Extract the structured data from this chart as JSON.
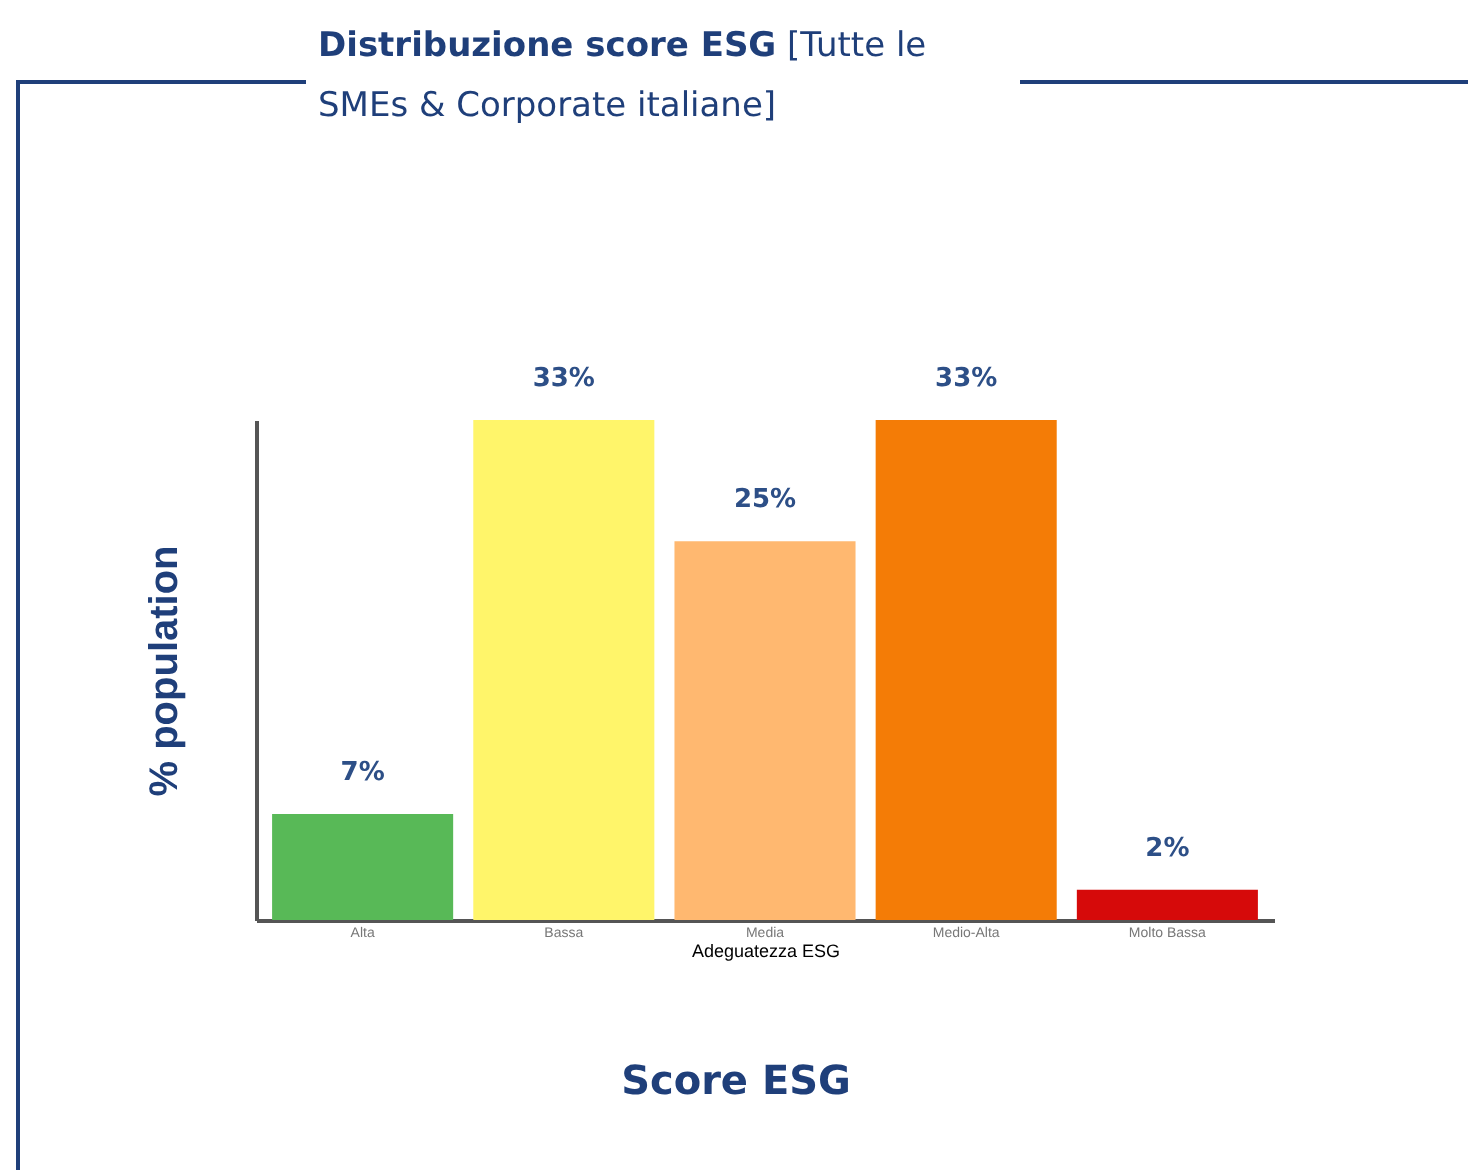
{
  "chart_data": {
    "type": "bar",
    "title": "Distribuzione score ESG",
    "subtitle": "[Tutte le SMEs & Corporate italiane]",
    "xlabel": "Adeguatezza ESG",
    "ylabel": "% population",
    "annotations": [
      "Score ESG"
    ],
    "categories": [
      "Alta",
      "Bassa",
      "Media",
      "Medio-Alta",
      "Molto Bassa"
    ],
    "values": [
      7,
      33,
      25,
      33,
      2
    ],
    "colors": [
      "#58b957",
      "#fff56a",
      "#ffb870",
      "#f47c06",
      "#d60a0a"
    ],
    "value_labels": [
      "7%",
      "33%",
      "25%",
      "33%",
      "2%"
    ],
    "tick_labels": "x",
    "grid": false
  }
}
